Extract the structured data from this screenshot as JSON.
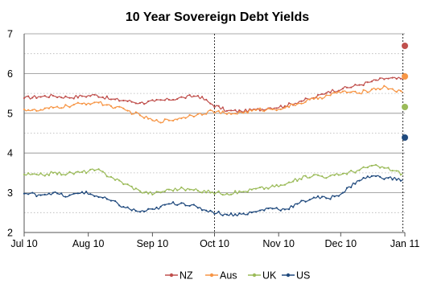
{
  "chart_data": {
    "type": "line",
    "title": "10 Year Sovereign Debt Yields",
    "xlabel": "",
    "ylabel": "",
    "xlim": [
      "2010-07-01",
      "2011-01-01"
    ],
    "ylim": [
      2,
      7
    ],
    "y_ticks": [
      {
        "value": 2,
        "label": "2"
      },
      {
        "value": 3,
        "label": "3"
      },
      {
        "value": 4,
        "label": "4"
      },
      {
        "value": 5,
        "label": "5"
      },
      {
        "value": 6,
        "label": "6"
      },
      {
        "value": 7,
        "label": "7"
      }
    ],
    "x_ticks": [
      {
        "date": "2010-07-01",
        "label": "Jul 10"
      },
      {
        "date": "2010-08-01",
        "label": "Aug 10"
      },
      {
        "date": "2010-09-01",
        "label": "Sep 10"
      },
      {
        "date": "2010-10-01",
        "label": "Oct 10"
      },
      {
        "date": "2010-11-01",
        "label": "Nov 10"
      },
      {
        "date": "2010-12-01",
        "label": "Dec 10"
      },
      {
        "date": "2011-01-01",
        "label": "Jan 11"
      }
    ],
    "grid": {
      "major_y": true,
      "minor_y": true
    },
    "vertical_markers": [
      {
        "date": "2010-10-01",
        "style": "dashed"
      },
      {
        "date": "2010-12-31",
        "style": "dashed"
      }
    ],
    "legend_position": "bottom",
    "series": [
      {
        "name": "NZ",
        "color": "#c0504d",
        "points": [
          [
            "2010-07-01",
            5.38
          ],
          [
            "2010-07-08",
            5.42
          ],
          [
            "2010-07-15",
            5.44
          ],
          [
            "2010-07-22",
            5.4
          ],
          [
            "2010-07-29",
            5.43
          ],
          [
            "2010-08-05",
            5.46
          ],
          [
            "2010-08-12",
            5.35
          ],
          [
            "2010-08-19",
            5.32
          ],
          [
            "2010-08-26",
            5.26
          ],
          [
            "2010-09-02",
            5.3
          ],
          [
            "2010-09-09",
            5.34
          ],
          [
            "2010-09-16",
            5.4
          ],
          [
            "2010-09-23",
            5.44
          ],
          [
            "2010-09-30",
            5.22
          ],
          [
            "2010-10-07",
            5.06
          ],
          [
            "2010-10-14",
            5.05
          ],
          [
            "2010-10-21",
            5.09
          ],
          [
            "2010-10-28",
            5.14
          ],
          [
            "2010-11-04",
            5.18
          ],
          [
            "2010-11-11",
            5.3
          ],
          [
            "2010-11-18",
            5.38
          ],
          [
            "2010-11-25",
            5.55
          ],
          [
            "2010-12-02",
            5.62
          ],
          [
            "2010-12-09",
            5.7
          ],
          [
            "2010-12-16",
            5.8
          ],
          [
            "2010-12-23",
            5.88
          ],
          [
            "2010-12-31",
            5.86
          ]
        ]
      },
      {
        "name": "Aus",
        "color": "#f79646",
        "points": [
          [
            "2010-07-01",
            5.1
          ],
          [
            "2010-07-08",
            5.06
          ],
          [
            "2010-07-15",
            5.14
          ],
          [
            "2010-07-22",
            5.18
          ],
          [
            "2010-07-29",
            5.24
          ],
          [
            "2010-08-05",
            5.28
          ],
          [
            "2010-08-12",
            5.18
          ],
          [
            "2010-08-19",
            5.08
          ],
          [
            "2010-08-26",
            4.95
          ],
          [
            "2010-09-02",
            4.8
          ],
          [
            "2010-09-09",
            4.82
          ],
          [
            "2010-09-16",
            4.9
          ],
          [
            "2010-09-23",
            4.98
          ],
          [
            "2010-09-30",
            5.06
          ],
          [
            "2010-10-07",
            4.98
          ],
          [
            "2010-10-14",
            5.02
          ],
          [
            "2010-10-21",
            5.08
          ],
          [
            "2010-10-28",
            5.1
          ],
          [
            "2010-11-04",
            5.14
          ],
          [
            "2010-11-11",
            5.25
          ],
          [
            "2010-11-18",
            5.36
          ],
          [
            "2010-11-25",
            5.45
          ],
          [
            "2010-12-02",
            5.55
          ],
          [
            "2010-12-09",
            5.5
          ],
          [
            "2010-12-16",
            5.6
          ],
          [
            "2010-12-23",
            5.66
          ],
          [
            "2010-12-31",
            5.52
          ]
        ]
      },
      {
        "name": "UK",
        "color": "#9bbb59",
        "points": [
          [
            "2010-07-01",
            3.46
          ],
          [
            "2010-07-08",
            3.44
          ],
          [
            "2010-07-15",
            3.5
          ],
          [
            "2010-07-22",
            3.48
          ],
          [
            "2010-07-29",
            3.52
          ],
          [
            "2010-08-05",
            3.58
          ],
          [
            "2010-08-12",
            3.4
          ],
          [
            "2010-08-19",
            3.22
          ],
          [
            "2010-08-26",
            3.04
          ],
          [
            "2010-09-02",
            2.98
          ],
          [
            "2010-09-09",
            3.08
          ],
          [
            "2010-09-16",
            3.1
          ],
          [
            "2010-09-23",
            3.05
          ],
          [
            "2010-09-30",
            3.02
          ],
          [
            "2010-10-07",
            2.98
          ],
          [
            "2010-10-14",
            3.02
          ],
          [
            "2010-10-21",
            3.1
          ],
          [
            "2010-10-28",
            3.14
          ],
          [
            "2010-11-04",
            3.2
          ],
          [
            "2010-11-11",
            3.36
          ],
          [
            "2010-11-18",
            3.45
          ],
          [
            "2010-11-25",
            3.4
          ],
          [
            "2010-12-02",
            3.48
          ],
          [
            "2010-12-09",
            3.56
          ],
          [
            "2010-12-16",
            3.68
          ],
          [
            "2010-12-23",
            3.62
          ],
          [
            "2010-12-31",
            3.48
          ]
        ]
      },
      {
        "name": "US",
        "color": "#1f497d",
        "points": [
          [
            "2010-07-01",
            2.98
          ],
          [
            "2010-07-08",
            2.95
          ],
          [
            "2010-07-15",
            3.0
          ],
          [
            "2010-07-22",
            2.9
          ],
          [
            "2010-07-29",
            3.02
          ],
          [
            "2010-08-05",
            2.92
          ],
          [
            "2010-08-12",
            2.8
          ],
          [
            "2010-08-19",
            2.62
          ],
          [
            "2010-08-26",
            2.52
          ],
          [
            "2010-09-02",
            2.58
          ],
          [
            "2010-09-09",
            2.72
          ],
          [
            "2010-09-16",
            2.74
          ],
          [
            "2010-09-23",
            2.62
          ],
          [
            "2010-09-30",
            2.52
          ],
          [
            "2010-10-07",
            2.45
          ],
          [
            "2010-10-14",
            2.46
          ],
          [
            "2010-10-21",
            2.52
          ],
          [
            "2010-10-28",
            2.62
          ],
          [
            "2010-11-04",
            2.58
          ],
          [
            "2010-11-11",
            2.74
          ],
          [
            "2010-11-18",
            2.88
          ],
          [
            "2010-11-25",
            2.86
          ],
          [
            "2010-12-02",
            3.0
          ],
          [
            "2010-12-09",
            3.3
          ],
          [
            "2010-12-16",
            3.42
          ],
          [
            "2010-12-23",
            3.38
          ],
          [
            "2010-12-31",
            3.32
          ]
        ]
      }
    ]
  }
}
